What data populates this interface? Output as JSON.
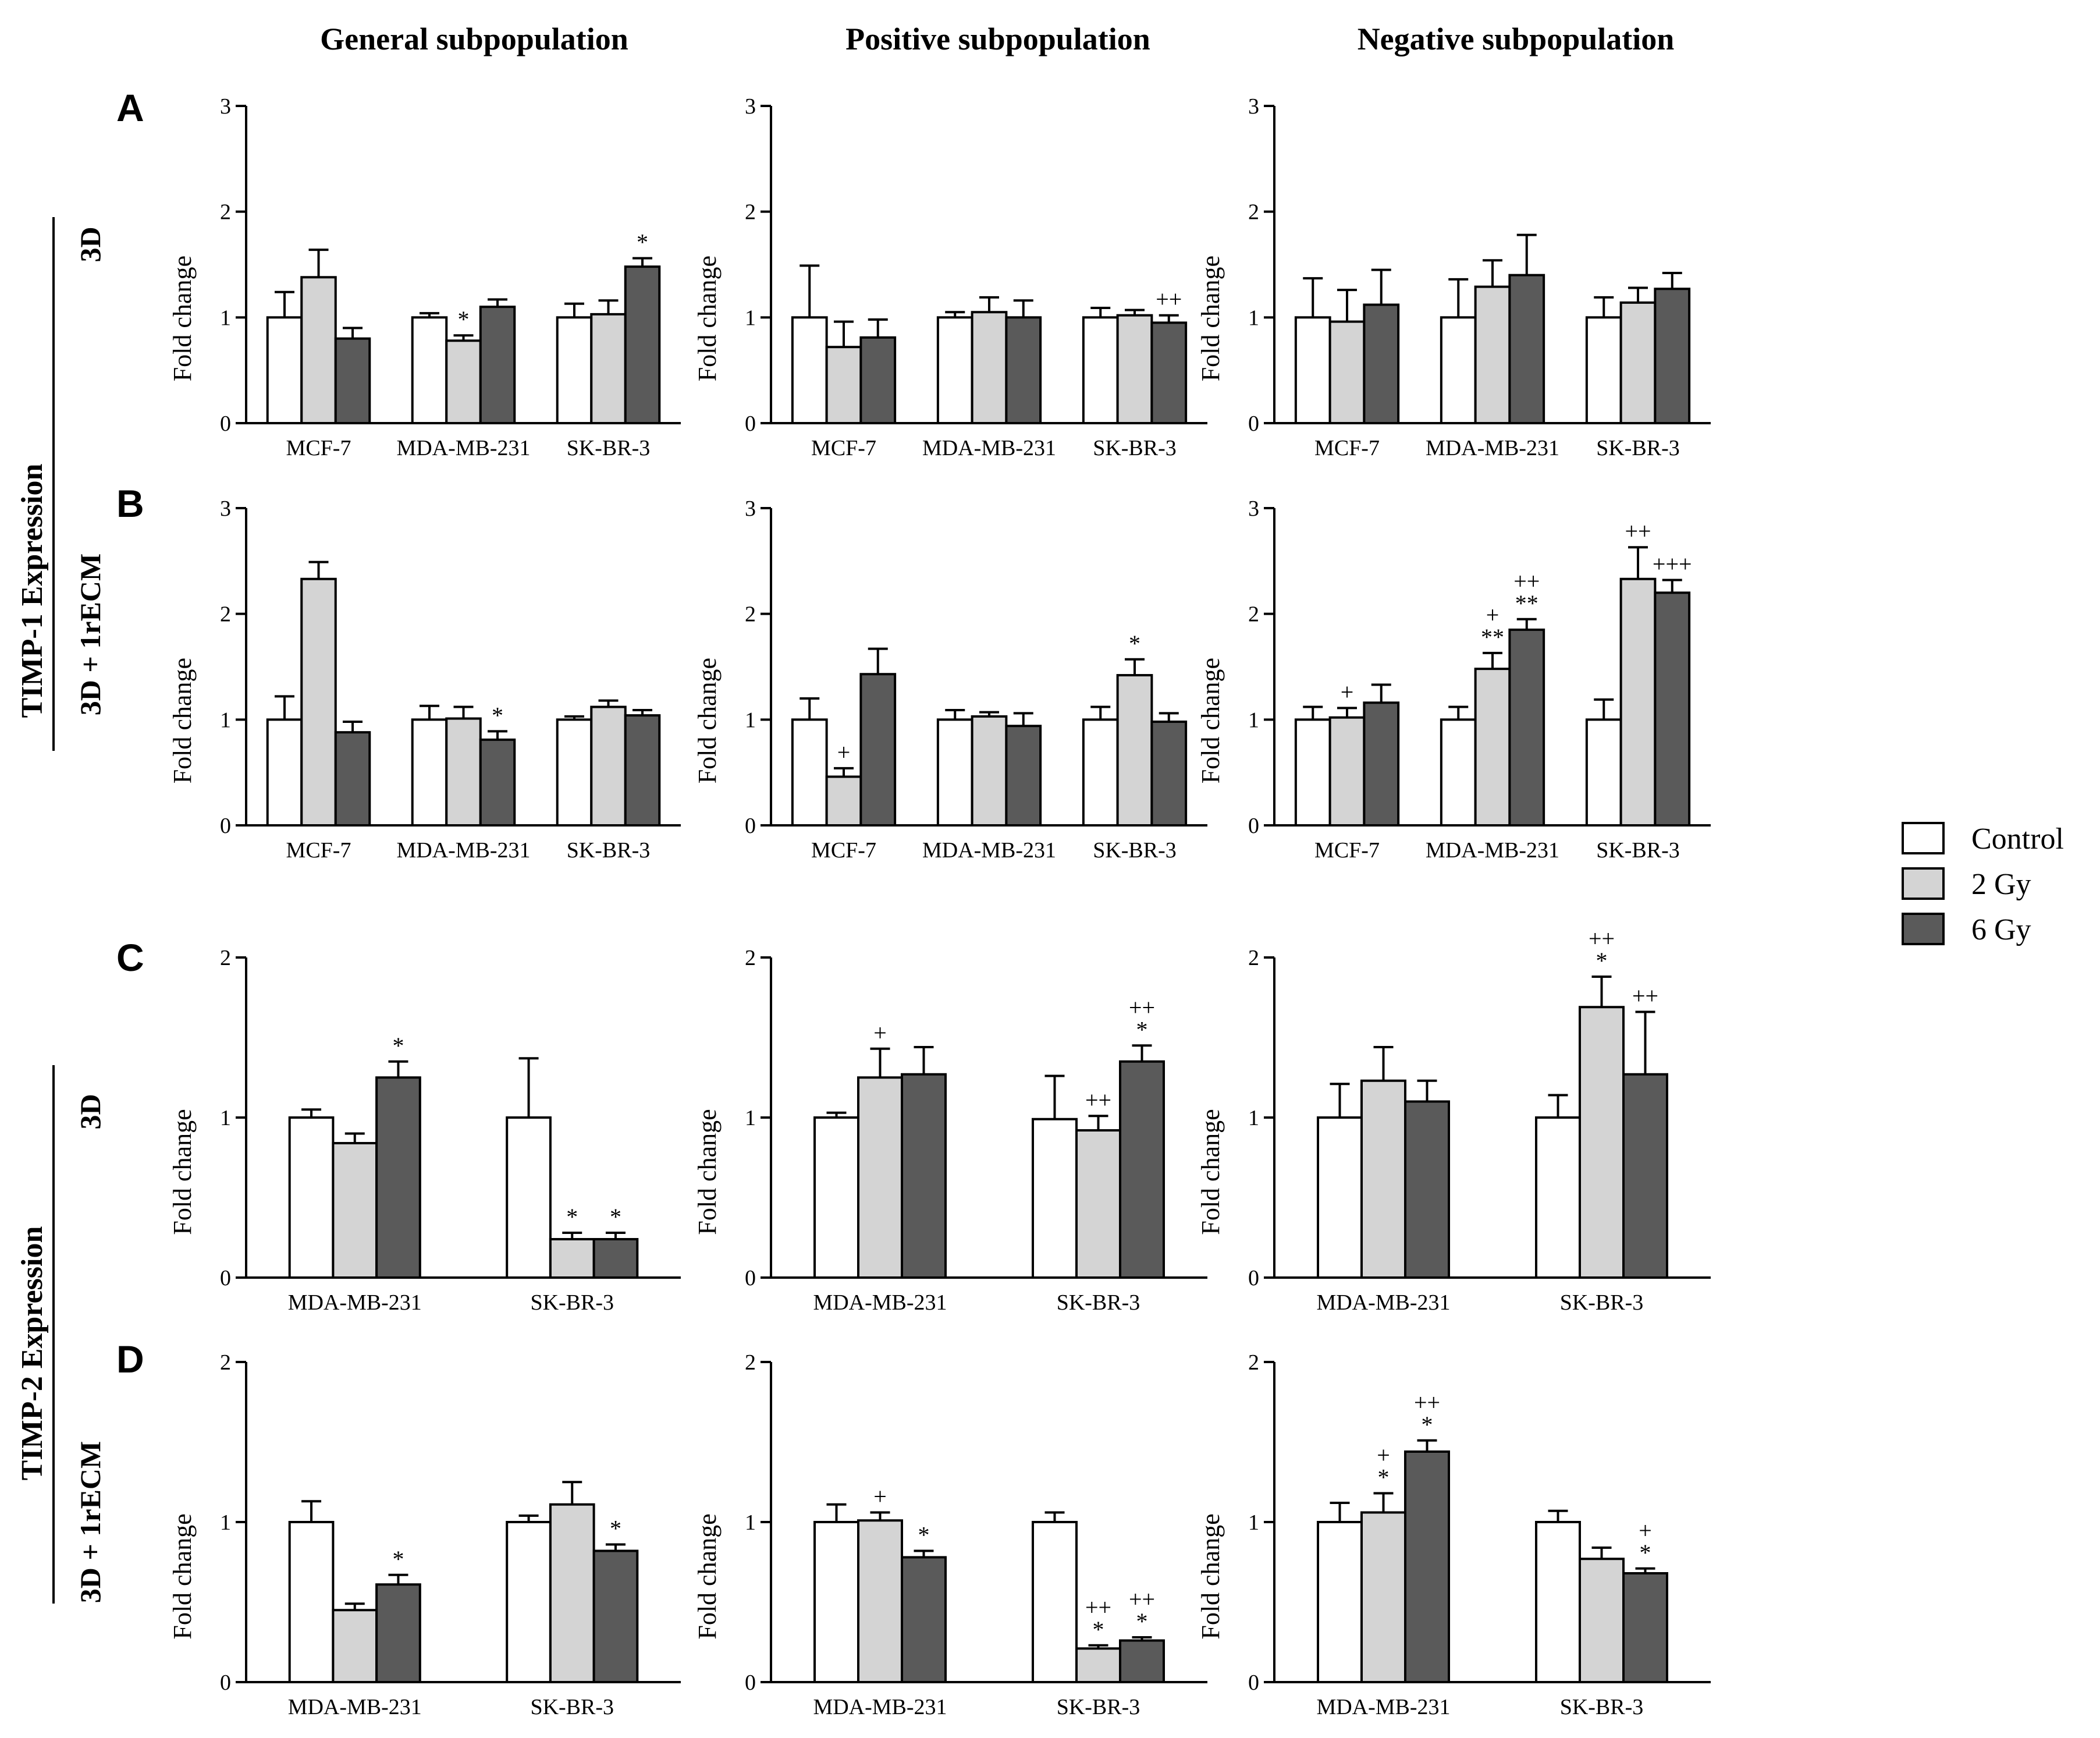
{
  "figure": {
    "column_titles": [
      "General  subpopulation",
      "Positive subpopulation",
      "Negative subpopulation"
    ],
    "row_group_labels": [
      "TIMP-1 Expression",
      "TIMP-2 Expression"
    ],
    "row_condition_labels": [
      "3D",
      "3D + 1rECM",
      "3D",
      "3D + 1rECM"
    ],
    "panel_labels": [
      "A",
      "B",
      "C",
      "D"
    ],
    "y_axis_label": "Fold change"
  },
  "legend": {
    "items": [
      {
        "label": "Control",
        "color": "#ffffff"
      },
      {
        "label": "2 Gy",
        "color": "#d4d4d4"
      },
      {
        "label": "6 Gy",
        "color": "#5a5a5a"
      }
    ]
  },
  "chart_data": [
    {
      "type": "bar",
      "panel": "A",
      "title": "General  subpopulation",
      "ylabel": "Fold change",
      "ylim": [
        0,
        3
      ],
      "yticks": [
        0,
        1,
        2,
        3
      ],
      "categories": [
        "MCF-7",
        "MDA-MB-231",
        "SK-BR-3"
      ],
      "series": [
        {
          "name": "Control",
          "values": [
            1.0,
            1.0,
            1.0
          ],
          "errors": [
            0.24,
            0.04,
            0.13
          ],
          "annotations": [
            "",
            "",
            ""
          ]
        },
        {
          "name": "2 Gy",
          "values": [
            1.38,
            0.78,
            1.03
          ],
          "errors": [
            0.26,
            0.05,
            0.13
          ],
          "annotations": [
            "",
            "*",
            ""
          ]
        },
        {
          "name": "6 Gy",
          "values": [
            0.8,
            1.1,
            1.48
          ],
          "errors": [
            0.1,
            0.07,
            0.08
          ],
          "annotations": [
            "",
            "",
            "*"
          ]
        }
      ]
    },
    {
      "type": "bar",
      "panel": "A",
      "title": "Positive subpopulation",
      "ylabel": "Fold change",
      "ylim": [
        0,
        3
      ],
      "yticks": [
        0,
        1,
        2,
        3
      ],
      "categories": [
        "MCF-7",
        "MDA-MB-231",
        "SK-BR-3"
      ],
      "series": [
        {
          "name": "Control",
          "values": [
            1.0,
            1.0,
            1.0
          ],
          "errors": [
            0.49,
            0.05,
            0.09
          ],
          "annotations": [
            "",
            "",
            ""
          ]
        },
        {
          "name": "2 Gy",
          "values": [
            0.72,
            1.05,
            1.02
          ],
          "errors": [
            0.24,
            0.14,
            0.05
          ],
          "annotations": [
            "",
            "",
            ""
          ]
        },
        {
          "name": "6 Gy",
          "values": [
            0.81,
            1.0,
            0.95
          ],
          "errors": [
            0.17,
            0.16,
            0.07
          ],
          "annotations": [
            "",
            "",
            "++"
          ]
        }
      ]
    },
    {
      "type": "bar",
      "panel": "A",
      "title": "Negative subpopulation",
      "ylabel": "Fold change",
      "ylim": [
        0,
        3
      ],
      "yticks": [
        0,
        1,
        2,
        3
      ],
      "categories": [
        "MCF-7",
        "MDA-MB-231",
        "SK-BR-3"
      ],
      "series": [
        {
          "name": "Control",
          "values": [
            1.0,
            1.0,
            1.0
          ],
          "errors": [
            0.37,
            0.36,
            0.19
          ],
          "annotations": [
            "",
            "",
            ""
          ]
        },
        {
          "name": "2 Gy",
          "values": [
            0.96,
            1.29,
            1.14
          ],
          "errors": [
            0.3,
            0.25,
            0.14
          ],
          "annotations": [
            "",
            "",
            ""
          ]
        },
        {
          "name": "6 Gy",
          "values": [
            1.12,
            1.4,
            1.27
          ],
          "errors": [
            0.33,
            0.38,
            0.15
          ],
          "annotations": [
            "",
            "",
            ""
          ]
        }
      ]
    },
    {
      "type": "bar",
      "panel": "B",
      "title": "General  subpopulation",
      "ylabel": "Fold change",
      "ylim": [
        0,
        3
      ],
      "yticks": [
        0,
        1,
        2,
        3
      ],
      "categories": [
        "MCF-7",
        "MDA-MB-231",
        "SK-BR-3"
      ],
      "series": [
        {
          "name": "Control",
          "values": [
            1.0,
            1.0,
            1.0
          ],
          "errors": [
            0.22,
            0.13,
            0.03
          ],
          "annotations": [
            "",
            "",
            ""
          ]
        },
        {
          "name": "2 Gy",
          "values": [
            2.33,
            1.01,
            1.12
          ],
          "errors": [
            0.16,
            0.11,
            0.06
          ],
          "annotations": [
            "",
            "",
            ""
          ]
        },
        {
          "name": "6 Gy",
          "values": [
            0.88,
            0.81,
            1.04
          ],
          "errors": [
            0.1,
            0.08,
            0.05
          ],
          "annotations": [
            "",
            "*",
            ""
          ]
        }
      ]
    },
    {
      "type": "bar",
      "panel": "B",
      "title": "Positive subpopulation",
      "ylabel": "Fold change",
      "ylim": [
        0,
        3
      ],
      "yticks": [
        0,
        1,
        2,
        3
      ],
      "categories": [
        "MCF-7",
        "MDA-MB-231",
        "SK-BR-3"
      ],
      "series": [
        {
          "name": "Control",
          "values": [
            1.0,
            1.0,
            1.0
          ],
          "errors": [
            0.2,
            0.09,
            0.12
          ],
          "annotations": [
            "",
            "",
            ""
          ]
        },
        {
          "name": "2 Gy",
          "values": [
            0.46,
            1.03,
            1.42
          ],
          "errors": [
            0.08,
            0.04,
            0.15
          ],
          "annotations": [
            "+",
            "",
            "*"
          ]
        },
        {
          "name": "6 Gy",
          "values": [
            1.43,
            0.94,
            0.98
          ],
          "errors": [
            0.24,
            0.12,
            0.08
          ],
          "annotations": [
            "",
            "",
            ""
          ]
        }
      ]
    },
    {
      "type": "bar",
      "panel": "B",
      "title": "Negative subpopulation",
      "ylabel": "Fold change",
      "ylim": [
        0,
        3
      ],
      "yticks": [
        0,
        1,
        2,
        3
      ],
      "categories": [
        "MCF-7",
        "MDA-MB-231",
        "SK-BR-3"
      ],
      "series": [
        {
          "name": "Control",
          "values": [
            1.0,
            1.0,
            1.0
          ],
          "errors": [
            0.12,
            0.12,
            0.19
          ],
          "annotations": [
            "",
            "",
            ""
          ]
        },
        {
          "name": "2 Gy",
          "values": [
            1.02,
            1.48,
            2.33
          ],
          "errors": [
            0.09,
            0.15,
            0.3
          ],
          "annotations": [
            "+",
            "+\n**",
            "++"
          ]
        },
        {
          "name": "6 Gy",
          "values": [
            1.16,
            1.85,
            2.2
          ],
          "errors": [
            0.17,
            0.1,
            0.12
          ],
          "annotations": [
            "",
            "++\n**",
            "+++"
          ]
        }
      ]
    },
    {
      "type": "bar",
      "panel": "C",
      "title": "General  subpopulation",
      "ylabel": "Fold change",
      "ylim": [
        0,
        2
      ],
      "yticks": [
        0,
        1,
        2
      ],
      "categories": [
        "MDA-MB-231",
        "SK-BR-3"
      ],
      "series": [
        {
          "name": "Control",
          "values": [
            1.0,
            1.0
          ],
          "errors": [
            0.05,
            0.37
          ],
          "annotations": [
            "",
            ""
          ]
        },
        {
          "name": "2 Gy",
          "values": [
            0.84,
            0.24
          ],
          "errors": [
            0.06,
            0.04
          ],
          "annotations": [
            "",
            "*"
          ]
        },
        {
          "name": "6 Gy",
          "values": [
            1.25,
            0.24
          ],
          "errors": [
            0.1,
            0.04
          ],
          "annotations": [
            "*",
            "*"
          ]
        }
      ]
    },
    {
      "type": "bar",
      "panel": "C",
      "title": "Positive subpopulation",
      "ylabel": "Fold change",
      "ylim": [
        0,
        2
      ],
      "yticks": [
        0,
        1,
        2
      ],
      "categories": [
        "MDA-MB-231",
        "SK-BR-3"
      ],
      "series": [
        {
          "name": "Control",
          "values": [
            1.0,
            0.99
          ],
          "errors": [
            0.03,
            0.27
          ],
          "annotations": [
            "",
            ""
          ]
        },
        {
          "name": "2 Gy",
          "values": [
            1.25,
            0.92
          ],
          "errors": [
            0.18,
            0.09
          ],
          "annotations": [
            "+",
            "++"
          ]
        },
        {
          "name": "6 Gy",
          "values": [
            1.27,
            1.35
          ],
          "errors": [
            0.17,
            0.1
          ],
          "annotations": [
            "",
            "++\n*"
          ]
        }
      ]
    },
    {
      "type": "bar",
      "panel": "C",
      "title": "Negative subpopulation",
      "ylabel": "Fold change",
      "ylim": [
        0,
        2
      ],
      "yticks": [
        0,
        1,
        2
      ],
      "categories": [
        "MDA-MB-231",
        "SK-BR-3"
      ],
      "series": [
        {
          "name": "Control",
          "values": [
            1.0,
            1.0
          ],
          "errors": [
            0.21,
            0.14
          ],
          "annotations": [
            "",
            ""
          ]
        },
        {
          "name": "2 Gy",
          "values": [
            1.23,
            1.69
          ],
          "errors": [
            0.21,
            0.19
          ],
          "annotations": [
            "",
            "++\n*"
          ]
        },
        {
          "name": "6 Gy",
          "values": [
            1.1,
            1.27
          ],
          "errors": [
            0.13,
            0.39
          ],
          "annotations": [
            "",
            "++"
          ]
        }
      ]
    },
    {
      "type": "bar",
      "panel": "D",
      "title": "General  subpopulation",
      "ylabel": "Fold change",
      "ylim": [
        0,
        2
      ],
      "yticks": [
        0,
        1,
        2
      ],
      "categories": [
        "MDA-MB-231",
        "SK-BR-3"
      ],
      "series": [
        {
          "name": "Control",
          "values": [
            1.0,
            1.0
          ],
          "errors": [
            0.13,
            0.04
          ],
          "annotations": [
            "",
            ""
          ]
        },
        {
          "name": "2 Gy",
          "values": [
            0.45,
            1.11
          ],
          "errors": [
            0.04,
            0.14
          ],
          "annotations": [
            "",
            ""
          ]
        },
        {
          "name": "6 Gy",
          "values": [
            0.61,
            0.82
          ],
          "errors": [
            0.06,
            0.04
          ],
          "annotations": [
            "*",
            "*"
          ]
        }
      ]
    },
    {
      "type": "bar",
      "panel": "D",
      "title": "Positive subpopulation",
      "ylabel": "Fold change",
      "ylim": [
        0,
        2
      ],
      "yticks": [
        0,
        1,
        2
      ],
      "categories": [
        "MDA-MB-231",
        "SK-BR-3"
      ],
      "series": [
        {
          "name": "Control",
          "values": [
            1.0,
            1.0
          ],
          "errors": [
            0.11,
            0.06
          ],
          "annotations": [
            "",
            ""
          ]
        },
        {
          "name": "2 Gy",
          "values": [
            1.01,
            0.21
          ],
          "errors": [
            0.05,
            0.02
          ],
          "annotations": [
            "+",
            "++\n*"
          ]
        },
        {
          "name": "6 Gy",
          "values": [
            0.78,
            0.26
          ],
          "errors": [
            0.04,
            0.02
          ],
          "annotations": [
            "*",
            "++\n*"
          ]
        }
      ]
    },
    {
      "type": "bar",
      "panel": "D",
      "title": "Negative subpopulation",
      "ylabel": "Fold change",
      "ylim": [
        0,
        2
      ],
      "yticks": [
        0,
        1,
        2
      ],
      "categories": [
        "MDA-MB-231",
        "SK-BR-3"
      ],
      "series": [
        {
          "name": "Control",
          "values": [
            1.0,
            1.0
          ],
          "errors": [
            0.12,
            0.07
          ],
          "annotations": [
            "",
            ""
          ]
        },
        {
          "name": "2 Gy",
          "values": [
            1.06,
            0.77
          ],
          "errors": [
            0.12,
            0.07
          ],
          "annotations": [
            "+\n*",
            ""
          ]
        },
        {
          "name": "6 Gy",
          "values": [
            1.44,
            0.68
          ],
          "errors": [
            0.07,
            0.03
          ],
          "annotations": [
            "++\n*",
            "+\n*"
          ]
        }
      ]
    }
  ]
}
